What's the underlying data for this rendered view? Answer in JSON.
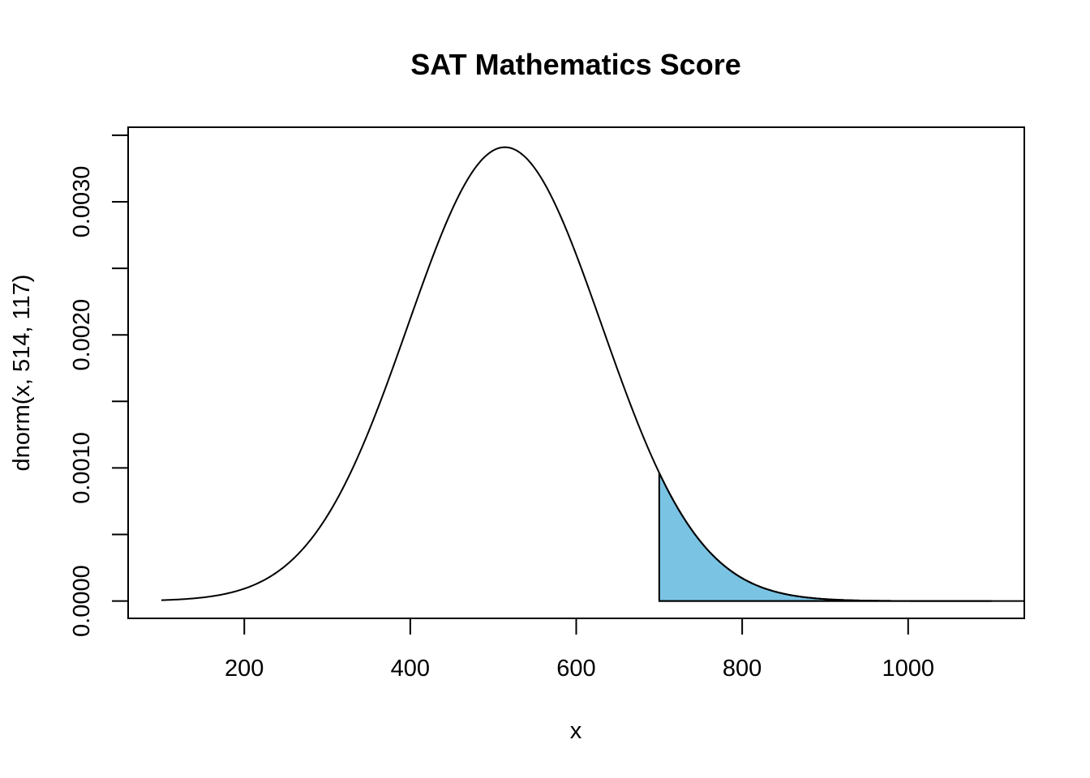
{
  "chart_data": {
    "type": "area",
    "title": "SAT Mathematics Score",
    "xlabel": "x",
    "ylabel": "dnorm(x, 514, 117)",
    "distribution": {
      "family": "normal",
      "mean": 514,
      "sd": 117
    },
    "curve_x_range": [
      100,
      1100
    ],
    "shaded_region": {
      "from": 700,
      "to": 1100,
      "color": "#7AC3E3"
    },
    "xlim": [
      60,
      1140
    ],
    "ylim": [
      -0.00013,
      0.00356
    ],
    "x_ticks": [
      200,
      400,
      600,
      800,
      1000
    ],
    "x_tick_labels": [
      "200",
      "400",
      "600",
      "800",
      "1000"
    ],
    "y_ticks": [
      0.0,
      0.0005,
      0.001,
      0.0015,
      0.002,
      0.0025,
      0.003,
      0.0035
    ],
    "y_labeled_ticks": [
      0.0,
      0.001,
      0.002,
      0.003
    ],
    "y_tick_labels": [
      "0.0000",
      "0.0010",
      "0.0020",
      "0.0030"
    ],
    "grid": false,
    "colors": {
      "curve": "#000000",
      "fill": "#7AC3E3",
      "axes": "#000000"
    }
  }
}
